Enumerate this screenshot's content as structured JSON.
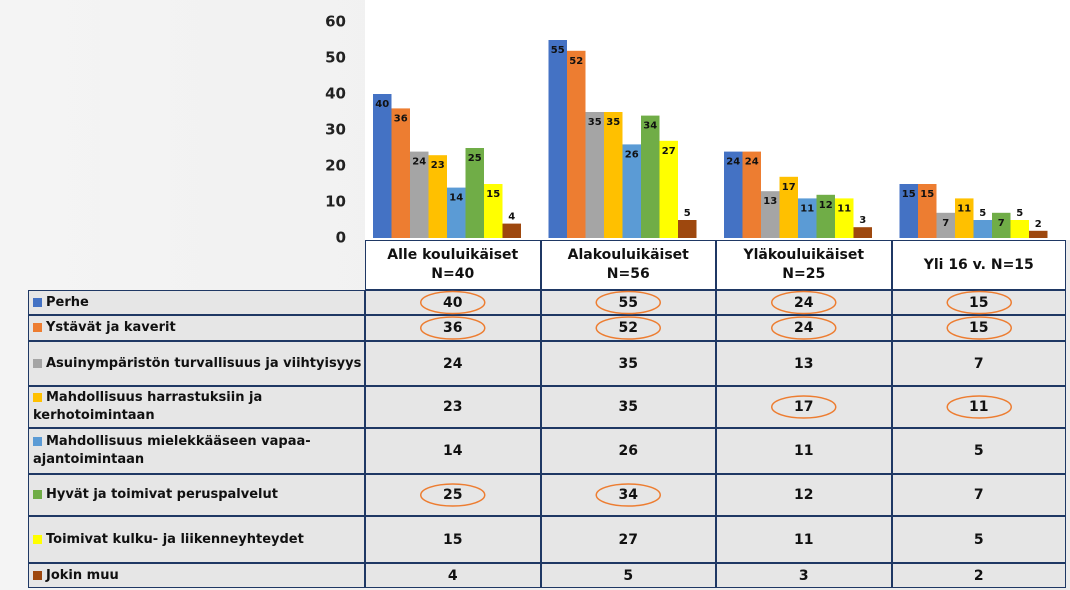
{
  "chart_data": {
    "type": "bar",
    "categories": [
      "Alle kouluikäiset N=40",
      "Alakouluikäiset N=56",
      "Yläkouluikäiset N=25",
      "Yli 16 v. N=15"
    ],
    "series": [
      {
        "name": "Perhe",
        "color": "#4472c4",
        "values": [
          40,
          55,
          24,
          15
        ]
      },
      {
        "name": "Ystävät ja kaverit",
        "color": "#ed7d31",
        "values": [
          36,
          52,
          24,
          15
        ]
      },
      {
        "name": "Asuinympäristön turvallisuus ja viihtyisyys",
        "color": "#a5a5a5",
        "values": [
          24,
          35,
          13,
          7
        ]
      },
      {
        "name": "Mahdollisuus harrastuksiin ja kerhotoimintaan",
        "color": "#ffc000",
        "values": [
          23,
          35,
          17,
          11
        ]
      },
      {
        "name": "Mahdollisuus mielekkääseen vapaa-ajantoimintaan",
        "color": "#5b9bd5",
        "values": [
          14,
          26,
          11,
          5
        ]
      },
      {
        "name": "Hyvät ja toimivat peruspalvelut",
        "color": "#70ad47",
        "values": [
          25,
          34,
          12,
          7
        ]
      },
      {
        "name": "Toimivat kulku- ja liikenneyhteydet",
        "color": "#ffff00",
        "values": [
          15,
          27,
          11,
          5
        ]
      },
      {
        "name": "Jokin muu",
        "color": "#9e480e",
        "values": [
          4,
          5,
          3,
          2
        ]
      }
    ],
    "ylim": [
      0,
      60
    ],
    "yticks": [
      0,
      10,
      20,
      30,
      40,
      50,
      60
    ],
    "grid": false
  }
}
